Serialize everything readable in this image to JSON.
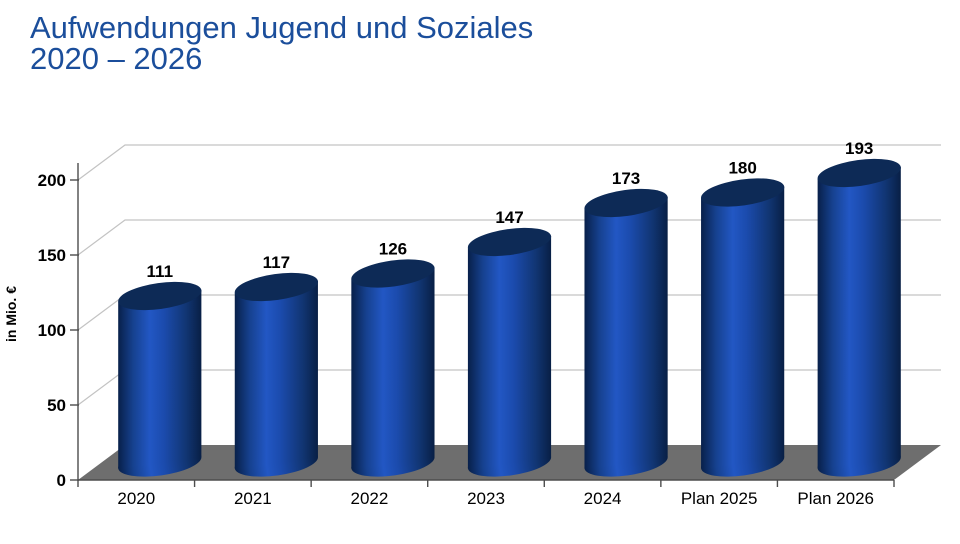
{
  "title": {
    "line1": "Aufwendungen Jugend und Soziales",
    "line2": "2020 – 2026"
  },
  "chart_data": {
    "type": "bar",
    "style": "3d-cylinder",
    "categories": [
      "2020",
      "2021",
      "2022",
      "2023",
      "2024",
      "Plan 2025",
      "Plan 2026"
    ],
    "values": [
      111,
      117,
      126,
      147,
      173,
      180,
      193
    ],
    "data_labels": [
      "111",
      "117",
      "126",
      "147",
      "173",
      "180",
      "193"
    ],
    "title": "Aufwendungen Jugend und Soziales 2020 – 2026",
    "xlabel": "",
    "ylabel": "in Mio. €",
    "yticks": [
      0,
      50,
      100,
      150,
      200
    ],
    "ytick_labels": [
      "0",
      "50",
      "100",
      "150",
      "200"
    ],
    "ylim": [
      0,
      212
    ],
    "grid": true,
    "legend": false
  },
  "colors": {
    "title_text": "#1B4E9B",
    "label_text": "#000000",
    "cylinder_top": "#0D2A56",
    "cylinder_gradient": [
      "#08204A",
      "#16418F",
      "#2257C4",
      "#1B4BAD",
      "#113572",
      "#081F45"
    ],
    "floor": "#6E6E6E",
    "gridline": "#C3C3C3",
    "axis": "#4D4D4D",
    "background": "#FFFFFF"
  }
}
